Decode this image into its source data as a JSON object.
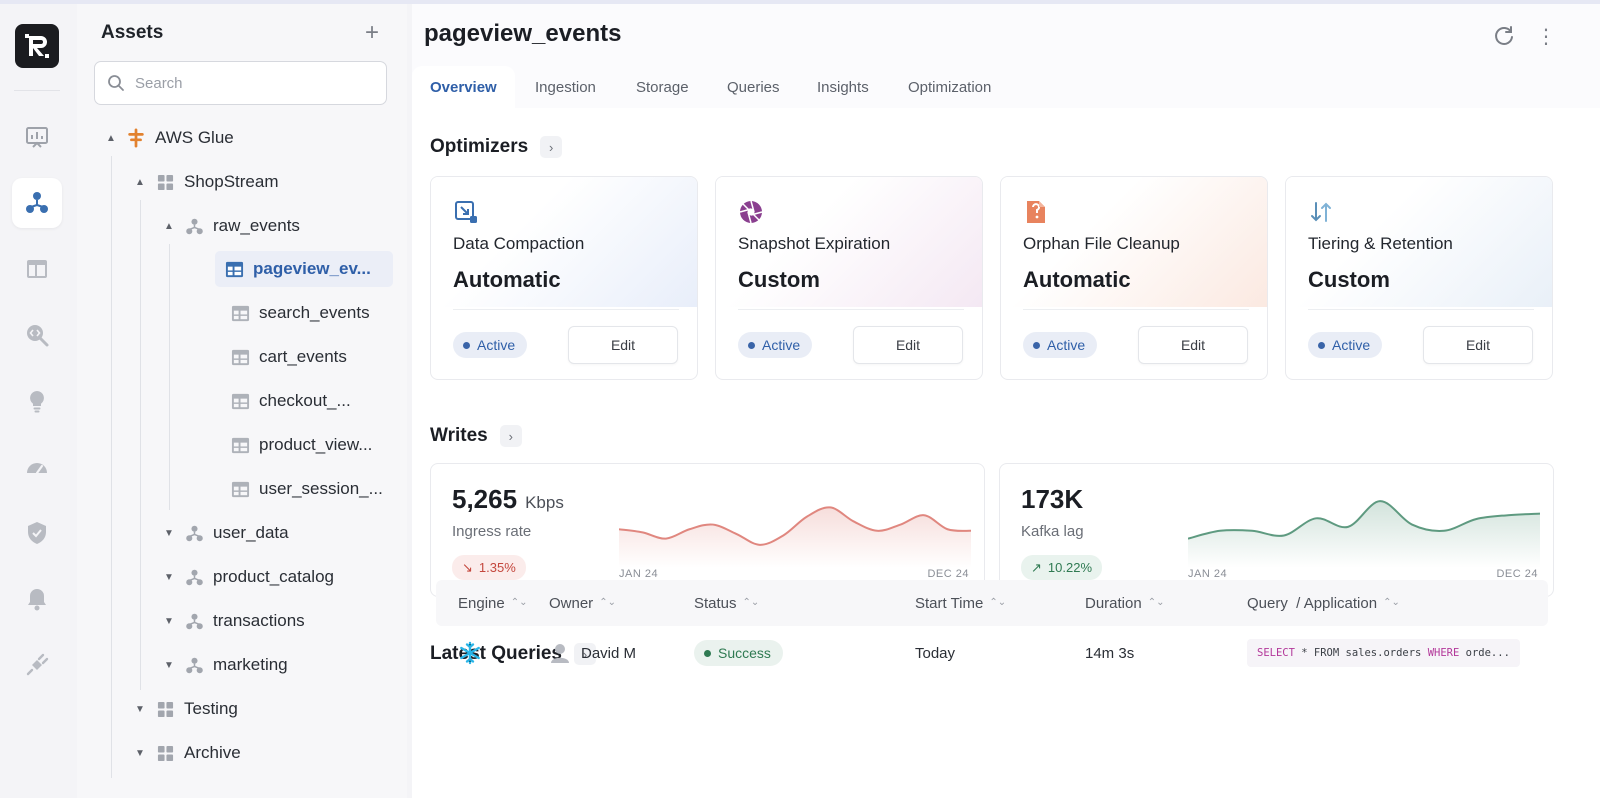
{
  "sidebar_rail": {
    "icons": [
      "logo-icon",
      "dashboard-icon",
      "assets-icon",
      "layout-icon",
      "query-search-icon",
      "lightbulb-icon",
      "gauge-icon",
      "shield-icon",
      "bell-icon",
      "plug-icon"
    ]
  },
  "assets": {
    "title": "Assets",
    "add_label": "+",
    "search_placeholder": "Search",
    "tree": {
      "catalog": "AWS Glue",
      "database": "ShopStream",
      "namespace": "raw_events",
      "tables": [
        "pageview_ev...",
        "search_events",
        "cart_events",
        "checkout_...",
        "product_view...",
        "user_session_..."
      ],
      "namespaces": [
        "user_data",
        "product_catalog",
        "transactions",
        "marketing"
      ],
      "databases": [
        "Testing",
        "Archive"
      ]
    }
  },
  "header": {
    "title": "pageview_events",
    "kebab": "⋮"
  },
  "tabs": [
    "Overview",
    "Ingestion",
    "Storage",
    "Queries",
    "Insights",
    "Optimization"
  ],
  "optimizers": {
    "title": "Optimizers",
    "chevron": "›",
    "cards": [
      {
        "name": "Data Compaction",
        "mode": "Automatic",
        "status": "Active",
        "edit": "Edit"
      },
      {
        "name": "Snapshot Expiration",
        "mode": "Custom",
        "status": "Active",
        "edit": "Edit"
      },
      {
        "name": "Orphan File Cleanup",
        "mode": "Automatic",
        "status": "Active",
        "edit": "Edit"
      },
      {
        "name": "Tiering & Retention",
        "mode": "Custom",
        "status": "Active",
        "edit": "Edit"
      }
    ]
  },
  "writes": {
    "title": "Writes",
    "chevron": "›",
    "cards": [
      {
        "value": "5,265",
        "unit": "Kbps",
        "label": "Ingress rate",
        "delta": "1.35%",
        "delta_arrow": "↘",
        "direction": "down",
        "x_start": "JAN 24",
        "x_end": "DEC 24",
        "line_color": "#e0877f",
        "series": [
          0.42,
          0.38,
          0.3,
          0.42,
          0.48,
          0.36,
          0.22,
          0.34,
          0.58,
          0.7,
          0.52,
          0.4,
          0.48,
          0.6,
          0.42,
          0.4
        ]
      },
      {
        "value": "173K",
        "unit": "",
        "label": "Kafka lag",
        "delta": "10.22%",
        "delta_arrow": "↗",
        "direction": "up",
        "x_start": "JAN 24",
        "x_end": "DEC 24",
        "line_color": "#5e9a80",
        "series": [
          0.3,
          0.4,
          0.4,
          0.34,
          0.56,
          0.45,
          0.78,
          0.48,
          0.4,
          0.55,
          0.6,
          0.62
        ]
      }
    ]
  },
  "latest_queries": {
    "title": "Latest Queries",
    "chevron": "›",
    "columns": [
      "Engine",
      "Owner",
      "Status",
      "Start Time",
      "Duration",
      "Query  / Application"
    ],
    "sort_glyph": "⌃⌄",
    "rows": [
      {
        "engine": "snowflake-icon",
        "owner": "David M",
        "status": "Success",
        "start_time": "Today",
        "duration": "14m 3s",
        "query_kw1": "SELECT",
        "query_mid": " * FROM sales.orders ",
        "query_kw2": "WHERE",
        "query_end": " orde..."
      }
    ]
  }
}
